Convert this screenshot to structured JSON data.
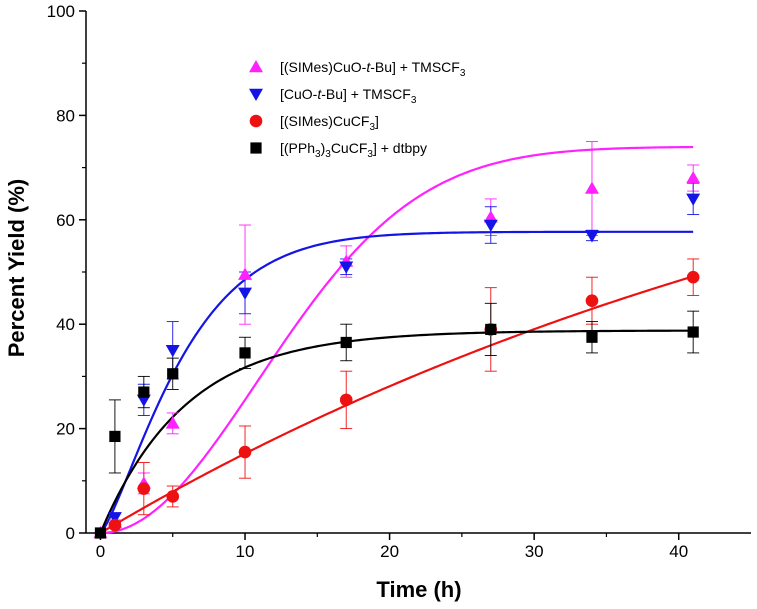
{
  "chart_data": {
    "type": "scatter",
    "xlabel": "Time (h)",
    "ylabel": "Percent Yield (%)",
    "xlim": [
      -1,
      45
    ],
    "ylim": [
      0,
      100
    ],
    "xticks": [
      0,
      10,
      20,
      30,
      40
    ],
    "yticks": [
      0,
      20,
      40,
      60,
      80,
      100
    ],
    "x_tick_labels": [
      "0",
      "10",
      "20",
      "30",
      "40"
    ],
    "y_tick_labels": [
      "0",
      "20",
      "40",
      "60",
      "80",
      "100"
    ],
    "legend_position": "top-center",
    "grid": false,
    "series": [
      {
        "name": "[(SIMes)CuO-t-Bu] + TMSCF3",
        "legend_parts": [
          "[(SIMes)CuO-",
          "t",
          "-Bu] + TMSCF",
          "3"
        ],
        "marker": "triangle-up",
        "color": "#ff22ff",
        "x": [
          0,
          1,
          3,
          5,
          10,
          17,
          27,
          34,
          41
        ],
        "y": [
          0,
          2,
          9.5,
          21,
          49.5,
          52,
          60.5,
          66,
          68
        ],
        "err": [
          0,
          0.5,
          2,
          2,
          9.5,
          3,
          3.5,
          9,
          2.5
        ],
        "fit": {
          "a": 74,
          "k": 0.065,
          "n": 2
        }
      },
      {
        "name": "[CuO-t-Bu] + TMSCF3",
        "legend_parts": [
          "[CuO-",
          "t",
          "-Bu] + TMSCF",
          "3"
        ],
        "marker": "triangle-down",
        "color": "#1414e6",
        "x": [
          1,
          3,
          5,
          10,
          17,
          27,
          34,
          41
        ],
        "y": [
          3,
          25.5,
          35,
          46,
          51,
          59,
          57,
          64
        ],
        "err": [
          0,
          3,
          5.5,
          4,
          1.5,
          3.5,
          1,
          3
        ],
        "fit": {
          "a": 57.7,
          "k": 0.16,
          "n": 1.3
        }
      },
      {
        "name": "[(SIMes)CuCF3]",
        "legend_parts": [
          "[(SIMes)CuCF",
          "3",
          "]"
        ],
        "marker": "circle",
        "color": "#ee1111",
        "x": [
          1,
          3,
          5,
          10,
          17,
          27,
          34,
          41
        ],
        "y": [
          1.5,
          8.5,
          7,
          15.5,
          25.5,
          39,
          44.5,
          49
        ],
        "err": [
          0.5,
          5,
          2,
          5,
          5.5,
          8,
          4.5,
          3.5
        ],
        "fit": {
          "a": 100,
          "k": 0.0165,
          "n": 1
        }
      },
      {
        "name": "[(PPh3)3CuCF3] + dtbpy",
        "legend_parts": [
          "[(PPh",
          "3",
          ")",
          "3",
          "CuCF",
          "3",
          "] + dtbpy"
        ],
        "marker": "square",
        "color": "#000000",
        "x": [
          0,
          1,
          3,
          5,
          10,
          17,
          27,
          34,
          41
        ],
        "y": [
          0,
          18.5,
          27,
          30.5,
          34.5,
          36.5,
          39,
          37.5,
          38.5
        ],
        "err": [
          0,
          7,
          3,
          3,
          3,
          3.5,
          5,
          3,
          4
        ],
        "fit": {
          "a": 38.8,
          "k": 0.17,
          "n": 1
        }
      }
    ]
  }
}
